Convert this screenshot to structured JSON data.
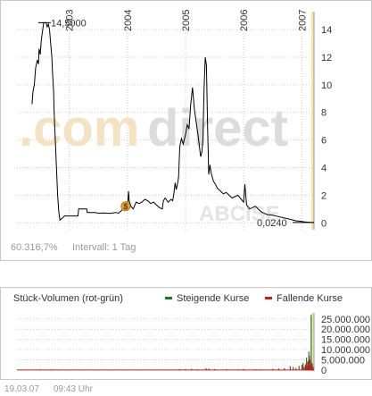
{
  "chart_data": [
    {
      "type": "line",
      "title": "",
      "xlabel": "",
      "ylabel": "",
      "x_ticks": [
        "2003",
        "2004",
        "2005",
        "2006",
        "2007"
      ],
      "y_ticks": [
        "0",
        "2",
        "4",
        "6",
        "8",
        "10",
        "12",
        "14"
      ],
      "ylim": [
        -0.5,
        15.3
      ],
      "grid": true,
      "legend": "none",
      "line_color": "#000000",
      "highlight_color": "#f5e6a8",
      "max_label": "14,5000",
      "last_label": "0,0240",
      "series": [
        {
          "x": [
            2002.36,
            2002.37,
            2002.38,
            2002.4,
            2002.42,
            2002.45,
            2002.47,
            2002.48,
            2002.5,
            2002.52,
            2002.54,
            2002.56,
            2002.58,
            2002.6,
            2002.62,
            2002.64,
            2002.66,
            2002.68,
            2002.7,
            2002.71,
            2002.73,
            2002.74,
            2002.76,
            2002.78,
            2002.8,
            2002.82,
            2002.84,
            2002.87,
            2002.92,
            2002.98,
            2003.05,
            2003.15,
            2003.16,
            2003.3,
            2003.31,
            2003.45,
            2003.5,
            2003.6,
            2003.7,
            2003.8,
            2003.85,
            2003.9,
            2003.95,
            2004.0,
            2004.02,
            2004.03,
            2004.06,
            2004.1,
            2004.15,
            2004.2,
            2004.25,
            2004.3,
            2004.35,
            2004.4,
            2004.45,
            2004.5,
            2004.55,
            2004.6,
            2004.62,
            2004.65,
            2004.7,
            2004.75,
            2004.78,
            2004.8,
            2004.82,
            2004.84,
            2004.86,
            2004.88,
            2004.9,
            2004.93,
            2004.96,
            2005.0,
            2005.03,
            2005.06,
            2005.09,
            2005.12,
            2005.15,
            2005.18,
            2005.2,
            2005.22,
            2005.24,
            2005.26,
            2005.28,
            2005.3,
            2005.32,
            2005.34,
            2005.36,
            2005.38,
            2005.4,
            2005.42,
            2005.44,
            2005.46,
            2005.48,
            2005.5,
            2005.55,
            2005.6,
            2005.65,
            2005.7,
            2005.8,
            2005.9,
            2006.0,
            2006.02,
            2006.05,
            2006.1,
            2006.2,
            2006.3,
            2006.4,
            2006.5,
            2006.6,
            2006.7,
            2006.8,
            2006.9,
            2007.0,
            2007.05,
            2007.1,
            2007.15,
            2007.21
          ],
          "y": [
            8.6,
            9.2,
            9.6,
            10.0,
            11.2,
            11.8,
            11.5,
            12.6,
            12.2,
            13.3,
            13.9,
            14.5,
            14.5,
            14.5,
            14.2,
            14.4,
            14.0,
            13.0,
            12.0,
            11.0,
            9.5,
            8.0,
            6.0,
            4.0,
            2.0,
            0.8,
            0.2,
            0.3,
            0.5,
            0.5,
            0.5,
            0.5,
            1.0,
            1.0,
            0.75,
            0.75,
            0.7,
            0.72,
            0.68,
            0.75,
            0.7,
            0.9,
            1.1,
            1.0,
            2.3,
            1.6,
            1.2,
            1.0,
            1.5,
            1.4,
            1.5,
            1.7,
            1.6,
            1.4,
            1.5,
            1.3,
            1.1,
            1.0,
            1.6,
            1.8,
            1.5,
            1.7,
            1.6,
            2.1,
            2.9,
            2.4,
            2.8,
            3.3,
            5.5,
            6.1,
            5.7,
            6.4,
            7.1,
            6.8,
            8.6,
            9.8,
            8.3,
            7.4,
            6.8,
            6.2,
            5.5,
            4.8,
            5.1,
            6.0,
            9.8,
            12.0,
            11.4,
            7.0,
            3.5,
            4.2,
            3.6,
            3.3,
            3.0,
            2.9,
            2.5,
            2.3,
            2.1,
            2.2,
            1.8,
            2.0,
            1.5,
            2.8,
            1.3,
            1.0,
            1.2,
            0.8,
            0.6,
            0.55,
            0.45,
            0.35,
            0.25,
            0.15,
            0.1,
            0.07,
            0.05,
            0.03,
            0.024
          ]
        }
      ],
      "markers": [
        {
          "x": 2003.97,
          "y": 1.2,
          "symbol": "$",
          "color": "#e8a23a"
        }
      ]
    },
    {
      "type": "bar",
      "title": "Stück-Volumen (rot-grün)",
      "y_ticks": [
        "0",
        "5.000.000",
        "10.000.000",
        "15.000.000",
        "20.000.000",
        "25.000.000"
      ],
      "ylim": [
        -500000,
        28000000
      ],
      "legend": "top-right",
      "series": [
        {
          "name": "Steigende Kurse",
          "color": "#1a7a2e",
          "x": [
            2002.5,
            2002.7,
            2003.0,
            2003.5,
            2004.0,
            2004.5,
            2004.9,
            2005.1,
            2005.35,
            2005.5,
            2005.9,
            2006.2,
            2006.5,
            2006.7,
            2006.85,
            2006.95,
            2007.02,
            2007.06,
            2007.08,
            2007.1,
            2007.12,
            2007.14,
            2007.16,
            2007.18,
            2007.2
          ],
          "values": [
            300000,
            250000,
            150000,
            100000,
            200000,
            150000,
            400000,
            600000,
            900000,
            500000,
            300000,
            400000,
            600000,
            900000,
            1500000,
            2000000,
            3500000,
            2500000,
            6000000,
            4000000,
            9000000,
            5000000,
            27000000,
            3000000,
            1500000
          ]
        },
        {
          "name": "Fallende Kurse",
          "color": "#c02020",
          "x": [
            2002.6,
            2002.8,
            2003.2,
            2003.7,
            2004.2,
            2004.7,
            2005.0,
            2005.2,
            2005.4,
            2005.7,
            2006.0,
            2006.3,
            2006.6,
            2006.8,
            2006.9,
            2007.0,
            2007.04,
            2007.07,
            2007.09,
            2007.11,
            2007.13,
            2007.15,
            2007.17,
            2007.19
          ],
          "values": [
            200000,
            200000,
            100000,
            100000,
            150000,
            200000,
            500000,
            400000,
            700000,
            400000,
            500000,
            300000,
            700000,
            1800000,
            1000000,
            2500000,
            1500000,
            3000000,
            2000000,
            4500000,
            7000000,
            2500000,
            3500000,
            1000000
          ]
        }
      ]
    }
  ],
  "footer": {
    "change_label": "60.316,7%",
    "interval_label": "Intervall: 1 Tag"
  },
  "watermark": {
    "part1": ".com",
    "part2": "direct",
    "part3": "ABCISE"
  },
  "bottom": {
    "date": "19.03.07",
    "time": "09:43 Uhr"
  }
}
